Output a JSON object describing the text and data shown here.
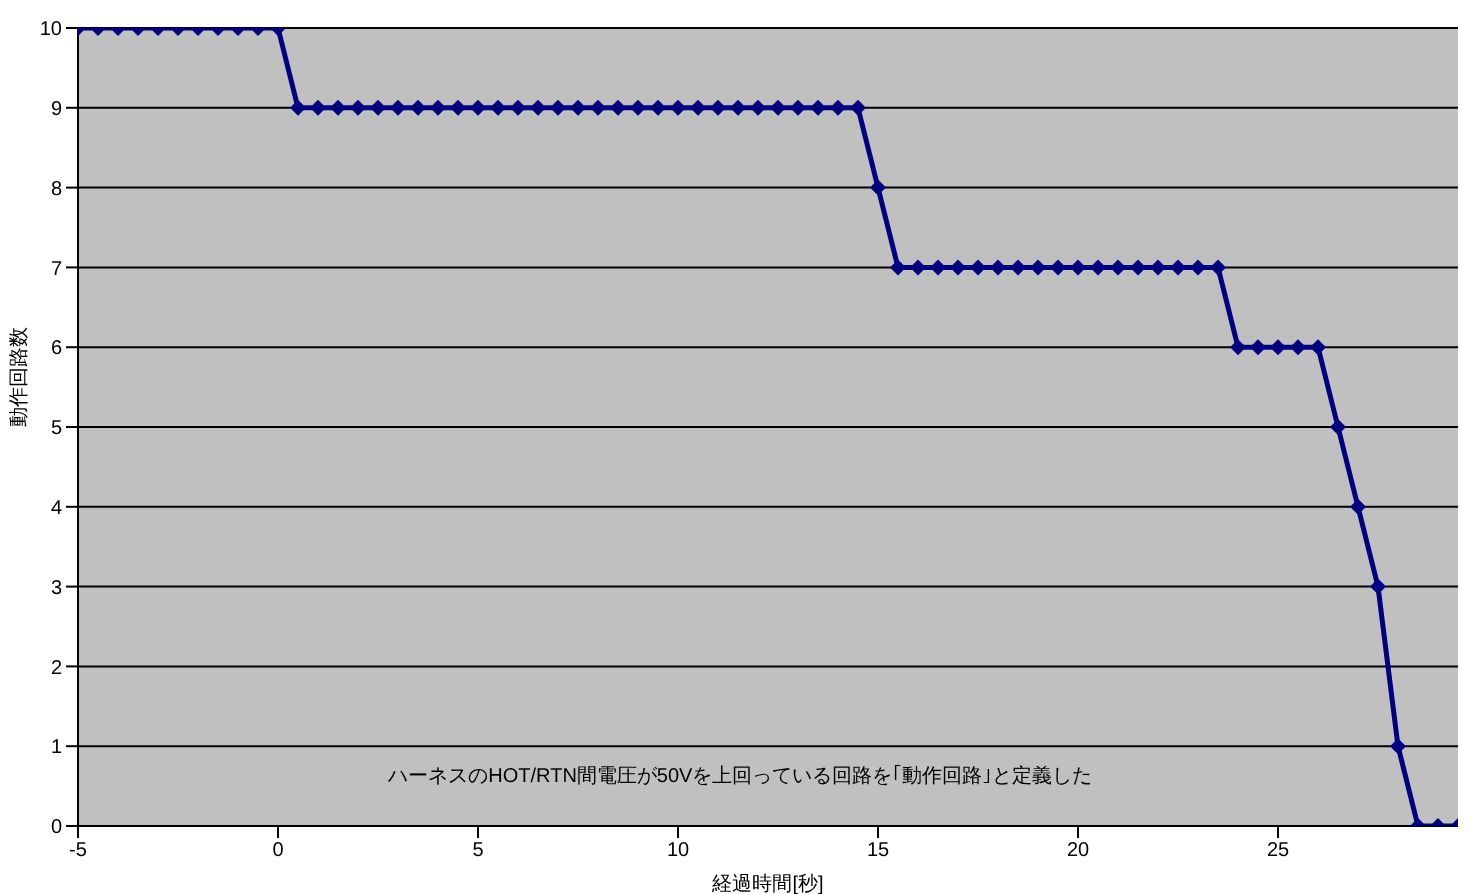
{
  "chart_data": {
    "type": "line",
    "xlabel": "経過時間[秒]",
    "ylabel": "動作回路数",
    "x": [
      -5,
      -4.5,
      -4,
      -3.5,
      -3,
      -2.5,
      -2,
      -1.5,
      -1,
      -0.5,
      0,
      0.5,
      1,
      1.5,
      2,
      2.5,
      3,
      3.5,
      4,
      4.5,
      5,
      5.5,
      6,
      6.5,
      7,
      7.5,
      8,
      8.5,
      9,
      9.5,
      10,
      10.5,
      11,
      11.5,
      12,
      12.5,
      13,
      13.5,
      14,
      14.5,
      15,
      15.5,
      16,
      16.5,
      17,
      17.5,
      18,
      18.5,
      19,
      19.5,
      20,
      20.5,
      21,
      21.5,
      22,
      22.5,
      23,
      23.5,
      24,
      24.5,
      25,
      25.5,
      26,
      26.5,
      27,
      27.5,
      28,
      28.5,
      29,
      29.5
    ],
    "series": [
      {
        "color": "#000080",
        "values": [
          10,
          10,
          10,
          10,
          10,
          10,
          10,
          10,
          10,
          10,
          10,
          9,
          9,
          9,
          9,
          9,
          9,
          9,
          9,
          9,
          9,
          9,
          9,
          9,
          9,
          9,
          9,
          9,
          9,
          9,
          9,
          9,
          9,
          9,
          9,
          9,
          9,
          9,
          9,
          9,
          8,
          7,
          7,
          7,
          7,
          7,
          7,
          7,
          7,
          7,
          7,
          7,
          7,
          7,
          7,
          7,
          7,
          7,
          6,
          6,
          6,
          6,
          6,
          5,
          4,
          3,
          1,
          0,
          0,
          0
        ]
      }
    ],
    "xlim": [
      -5,
      29.5
    ],
    "xticks": [
      -5,
      0,
      5,
      10,
      15,
      20,
      25
    ],
    "ylim": [
      0,
      10
    ],
    "yticks": [
      0,
      1,
      2,
      3,
      4,
      5,
      6,
      7,
      8,
      9,
      10
    ],
    "grid": "y",
    "marker": "diamond",
    "line_style": "solid",
    "annotations": [
      "ハーネスのHOT/RTN間電圧が50Vを上回っている回路を｢動作回路｣と定義した"
    ]
  }
}
